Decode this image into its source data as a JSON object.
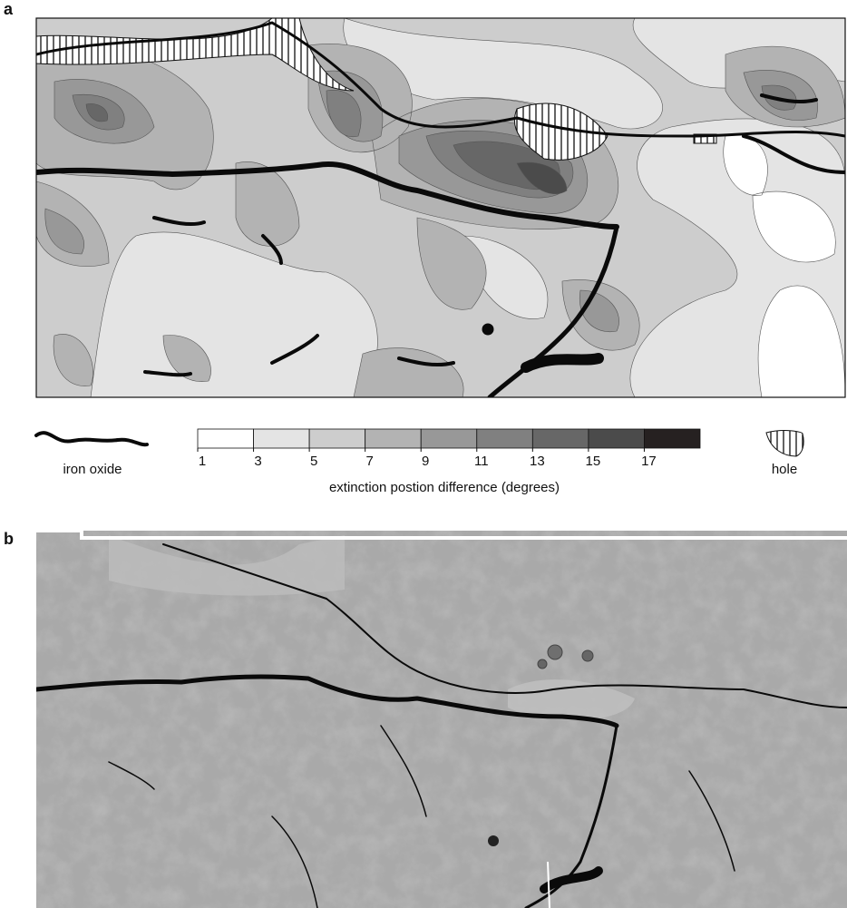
{
  "panels": [
    {
      "label": "a"
    },
    {
      "label": "b"
    }
  ],
  "legend": {
    "iron_oxide": "iron oxide",
    "hole": "hole",
    "colorbar": {
      "ticks": [
        1,
        3,
        5,
        7,
        9,
        11,
        13,
        15,
        17
      ],
      "colors": [
        "#ffffff",
        "#e4e4e4",
        "#cdcdcd",
        "#b3b3b3",
        "#989898",
        "#808080",
        "#676767",
        "#4b4b4b",
        "#262121"
      ],
      "label": "extinction postion difference (degrees)"
    }
  }
}
